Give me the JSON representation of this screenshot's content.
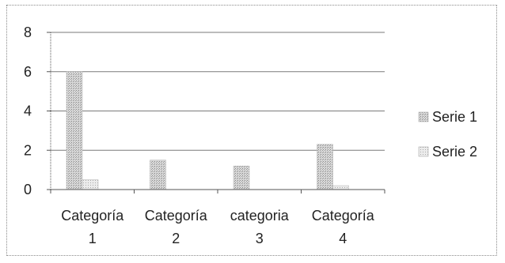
{
  "chart_data": {
    "type": "bar",
    "categories": [
      [
        "Categoría",
        "1"
      ],
      [
        "Categoría",
        "2"
      ],
      [
        "categoria",
        "3"
      ],
      [
        "Categoría",
        "4"
      ]
    ],
    "series": [
      {
        "name": "Serie 1",
        "values": [
          6.0,
          1.5,
          1.2,
          2.3
        ],
        "color": "#b8b8b8"
      },
      {
        "name": "Serie 2",
        "values": [
          0.5,
          0.0,
          0.0,
          0.2
        ],
        "color": "#d2d2d2"
      }
    ],
    "ylim": [
      0,
      8
    ],
    "yticks": [
      0,
      2,
      4,
      6,
      8
    ],
    "grid": true,
    "legend_position": "right",
    "title": "",
    "xlabel": "",
    "ylabel": ""
  }
}
